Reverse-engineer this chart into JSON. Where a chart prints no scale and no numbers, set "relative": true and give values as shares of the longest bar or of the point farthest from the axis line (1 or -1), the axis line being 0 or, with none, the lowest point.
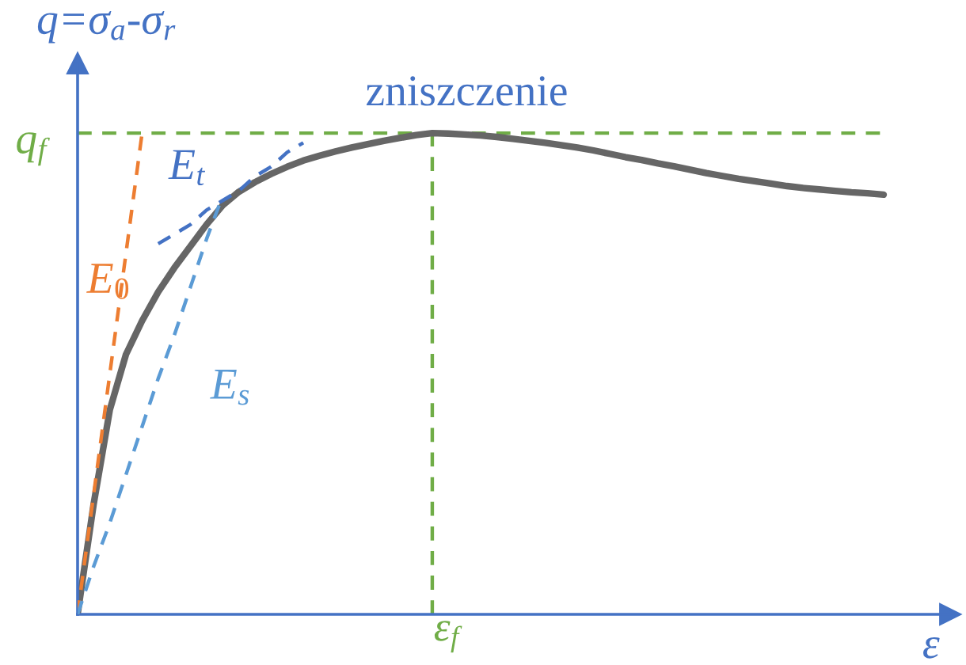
{
  "chart_data": {
    "type": "line",
    "relative": true,
    "ylabel": "q=σ$_{a}$-σ$_{r}$",
    "xlabel": "ε",
    "categories": [
      null,
      null,
      null,
      null,
      null,
      null,
      null,
      null,
      null,
      null,
      null,
      null,
      null,
      null,
      null,
      null,
      null,
      null,
      null,
      null,
      null,
      null,
      null,
      null,
      null,
      null,
      null,
      null,
      null,
      null,
      null,
      null,
      null,
      null,
      null,
      null,
      null,
      null,
      null,
      null,
      null,
      null,
      null,
      null,
      null,
      null,
      null,
      null,
      null,
      null,
      null
    ],
    "series": [
      {
        "color": "#666666",
        "values": [
          0,
          0.23,
          0.425,
          0.54,
          0.61,
          0.67,
          0.72,
          0.765,
          0.81,
          0.85,
          0.878,
          0.898,
          0.915,
          0.93,
          0.943,
          0.953,
          0.962,
          0.97,
          0.977,
          0.984,
          0.99,
          0.996,
          1.0,
          0.999,
          0.997,
          0.995,
          0.992,
          0.988,
          0.984,
          0.98,
          0.975,
          0.97,
          0.964,
          0.957,
          0.95,
          0.944,
          0.937,
          0.931,
          0.924,
          0.917,
          0.911,
          0.905,
          0.9,
          0.895,
          0.89,
          0.886,
          0.883,
          0.88,
          0.877,
          0.875,
          0.872
        ]
      },
      {
        "name": "E$_{0}$",
        "color": "#ed7d31",
        "line_style": "dashed",
        "values": [
          0,
          0.25,
          0.5,
          0.75,
          1.0,
          null,
          null,
          null,
          null,
          null,
          null,
          null,
          null,
          null,
          null,
          null,
          null,
          null,
          null,
          null,
          null,
          null,
          null,
          null,
          null,
          null,
          null,
          null,
          null,
          null,
          null,
          null,
          null,
          null,
          null,
          null,
          null,
          null,
          null,
          null,
          null,
          null,
          null,
          null,
          null,
          null,
          null,
          null,
          null,
          null,
          null
        ]
      },
      {
        "name": "E$_{t}$",
        "color": "#4472c4",
        "line_style": "dashed",
        "values": [
          null,
          null,
          null,
          null,
          null,
          0.77,
          0.79,
          0.81,
          0.84,
          0.86,
          0.88,
          0.91,
          0.93,
          0.96,
          0.98,
          null,
          null,
          null,
          null,
          null,
          null,
          null,
          null,
          null,
          null,
          null,
          null,
          null,
          null,
          null,
          null,
          null,
          null,
          null,
          null,
          null,
          null,
          null,
          null,
          null,
          null,
          null,
          null,
          null,
          null,
          null,
          null,
          null,
          null,
          null,
          null
        ]
      },
      {
        "name": "E$_{s}$",
        "color": "#5b9bd5",
        "line_style": "dashed",
        "values": [
          0,
          0.1,
          0.19,
          0.29,
          0.39,
          0.49,
          0.58,
          0.68,
          0.78,
          0.87,
          null,
          null,
          null,
          null,
          null,
          null,
          null,
          null,
          null,
          null,
          null,
          null,
          null,
          null,
          null,
          null,
          null,
          null,
          null,
          null,
          null,
          null,
          null,
          null,
          null,
          null,
          null,
          null,
          null,
          null,
          null,
          null,
          null,
          null,
          null,
          null,
          null,
          null,
          null,
          null,
          null
        ]
      }
    ],
    "ref_lines": [
      {
        "axis": "y",
        "value": 1.0,
        "label": "q$_{f}$",
        "color": "#70ad47",
        "line_style": "dashed"
      }
    ],
    "annotations": [
      "zniszczenie",
      "ε$_{f}$"
    ]
  }
}
